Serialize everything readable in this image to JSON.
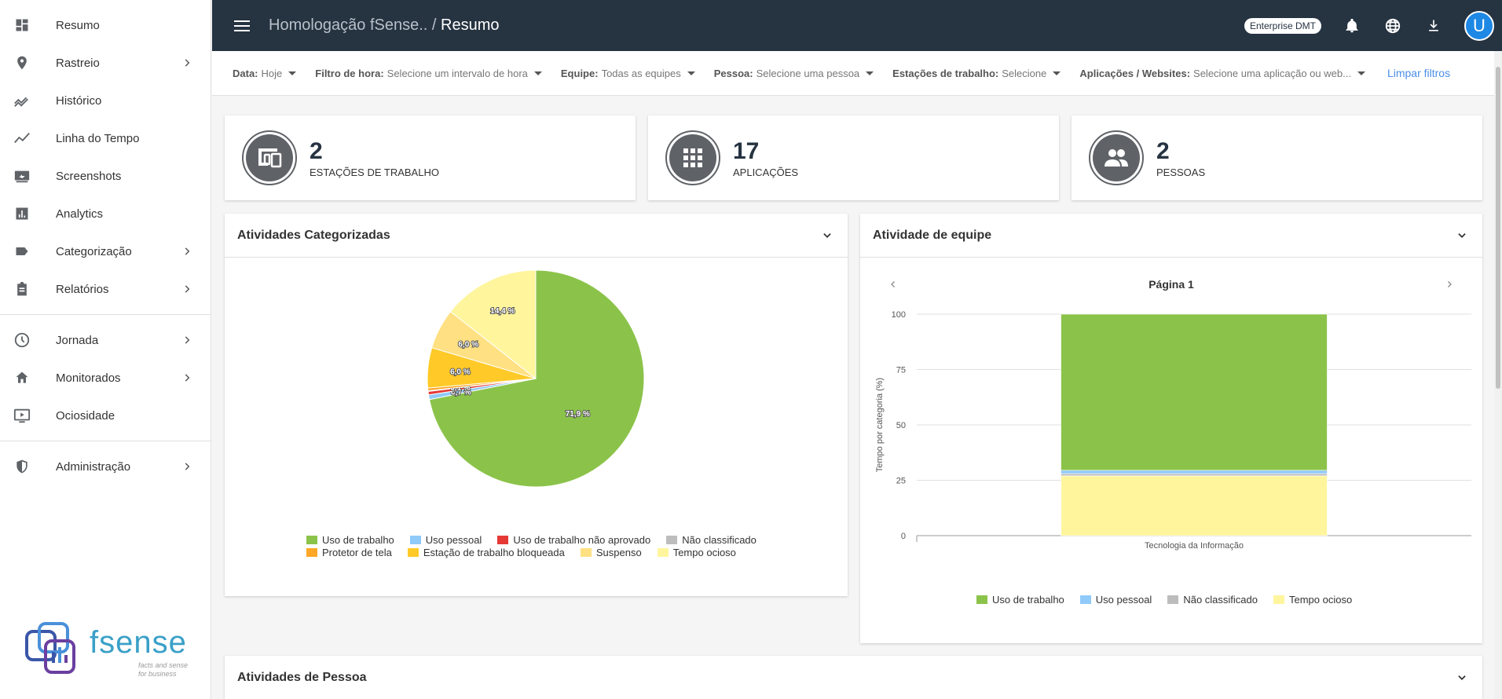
{
  "sidebar": {
    "items": [
      {
        "label": "Resumo",
        "icon": "dashboard-icon",
        "chevron": false
      },
      {
        "label": "Rastreio",
        "icon": "location-pin-icon",
        "chevron": true
      },
      {
        "label": "Histórico",
        "icon": "trending-icon",
        "chevron": false
      },
      {
        "label": "Linha do Tempo",
        "icon": "timeline-icon",
        "chevron": false
      },
      {
        "label": "Screenshots",
        "icon": "screenshot-icon",
        "chevron": false
      },
      {
        "label": "Analytics",
        "icon": "bar-chart-icon",
        "chevron": false
      },
      {
        "label": "Categorização",
        "icon": "label-icon",
        "chevron": true
      },
      {
        "label": "Relatórios",
        "icon": "clipboard-icon",
        "chevron": true
      },
      {
        "label": "Jornada",
        "icon": "clock-icon",
        "chevron": true
      },
      {
        "label": "Monitorados",
        "icon": "home-icon",
        "chevron": true
      },
      {
        "label": "Ociosidade",
        "icon": "monitor-play-icon",
        "chevron": false
      },
      {
        "label": "Administração",
        "icon": "shield-icon",
        "chevron": true
      }
    ],
    "logo_text": "fsense",
    "logo_tagline_1": "facts and sense",
    "logo_tagline_2": "for business"
  },
  "header": {
    "title_prefix": "Homologação fSense.. /",
    "title_current": "Resumo",
    "badge": "Enterprise DMT",
    "avatar_letter": "U"
  },
  "filters": [
    {
      "label": "Data:",
      "value": "Hoje"
    },
    {
      "label": "Filtro de hora:",
      "value": "Selecione um intervalo de hora"
    },
    {
      "label": "Equipe:",
      "value": "Todas as equipes"
    },
    {
      "label": "Pessoa:",
      "value": "Selecione uma pessoa"
    },
    {
      "label": "Estações de trabalho:",
      "value": "Selecione"
    },
    {
      "label": "Aplicações / Websites:",
      "value": "Selecione uma aplicação ou web..."
    }
  ],
  "clear_filters": "Limpar filtros",
  "stats": [
    {
      "number": "2",
      "label": "ESTAÇÕES DE TRABALHO"
    },
    {
      "number": "17",
      "label": "APLICAÇÕES"
    },
    {
      "number": "2",
      "label": "PESSOAS"
    }
  ],
  "panels": {
    "categorized": "Atividades Categorizadas",
    "team": "Atividade de equipe",
    "person": "Atividades de Pessoa"
  },
  "team_page": "Página 1",
  "colors": {
    "work": "#8bc34a",
    "personal": "#90caf9",
    "not_approved": "#e53935",
    "unclassified": "#bdbdbd",
    "screensaver": "#ffa726",
    "locked": "#ffca28",
    "suspended": "#ffe082",
    "idle": "#fff59d"
  },
  "chart_data": [
    {
      "type": "pie",
      "title": "",
      "slices": [
        {
          "label": "Uso de trabalho",
          "value": 71.9,
          "text": "71,9 %",
          "color": "#8bc34a"
        },
        {
          "label": "Uso pessoal",
          "value": 0.7,
          "text": "0,7 %",
          "color": "#90caf9"
        },
        {
          "label": "Uso de trabalho não aprovado",
          "value": 0.5,
          "text": "",
          "color": "#e53935"
        },
        {
          "label": "Não classificado",
          "value": 0.1,
          "text": "0,1 %",
          "color": "#bdbdbd"
        },
        {
          "label": "Protetor de tela",
          "value": 0.4,
          "text": "",
          "color": "#ffa726"
        },
        {
          "label": "Estação de trabalho bloqueada",
          "value": 6.0,
          "text": "6,0 %",
          "color": "#ffca28"
        },
        {
          "label": "Suspenso",
          "value": 6.0,
          "text": "6,0 %",
          "color": "#ffe082"
        },
        {
          "label": "Tempo ocioso",
          "value": 14.4,
          "text": "14,4 %",
          "color": "#fff59d"
        }
      ],
      "legend_rows": [
        [
          "Uso de trabalho",
          "Uso pessoal",
          "Uso de trabalho não aprovado",
          "Não classificado"
        ],
        [
          "Protetor de tela",
          "Estação de trabalho bloqueada",
          "Suspenso",
          "Tempo ocioso"
        ]
      ]
    },
    {
      "type": "bar",
      "stacked": true,
      "title": "",
      "categories": [
        "Tecnologia da Informação"
      ],
      "ylabel": "Tempo por categoria (%)",
      "ylim": [
        0,
        100
      ],
      "yticks": [
        0,
        25,
        50,
        75,
        100
      ],
      "grid": true,
      "series": [
        {
          "name": "Tempo ocioso",
          "values": [
            27.0
          ],
          "color": "#fff59d"
        },
        {
          "name": "Não classificado",
          "values": [
            1.0
          ],
          "color": "#bdbdbd"
        },
        {
          "name": "Uso pessoal",
          "values": [
            1.5
          ],
          "color": "#90caf9"
        },
        {
          "name": "Uso de trabalho",
          "values": [
            70.5
          ],
          "color": "#8bc34a"
        }
      ],
      "legend": [
        "Uso de trabalho",
        "Uso pessoal",
        "Não classificado",
        "Tempo ocioso"
      ]
    }
  ]
}
